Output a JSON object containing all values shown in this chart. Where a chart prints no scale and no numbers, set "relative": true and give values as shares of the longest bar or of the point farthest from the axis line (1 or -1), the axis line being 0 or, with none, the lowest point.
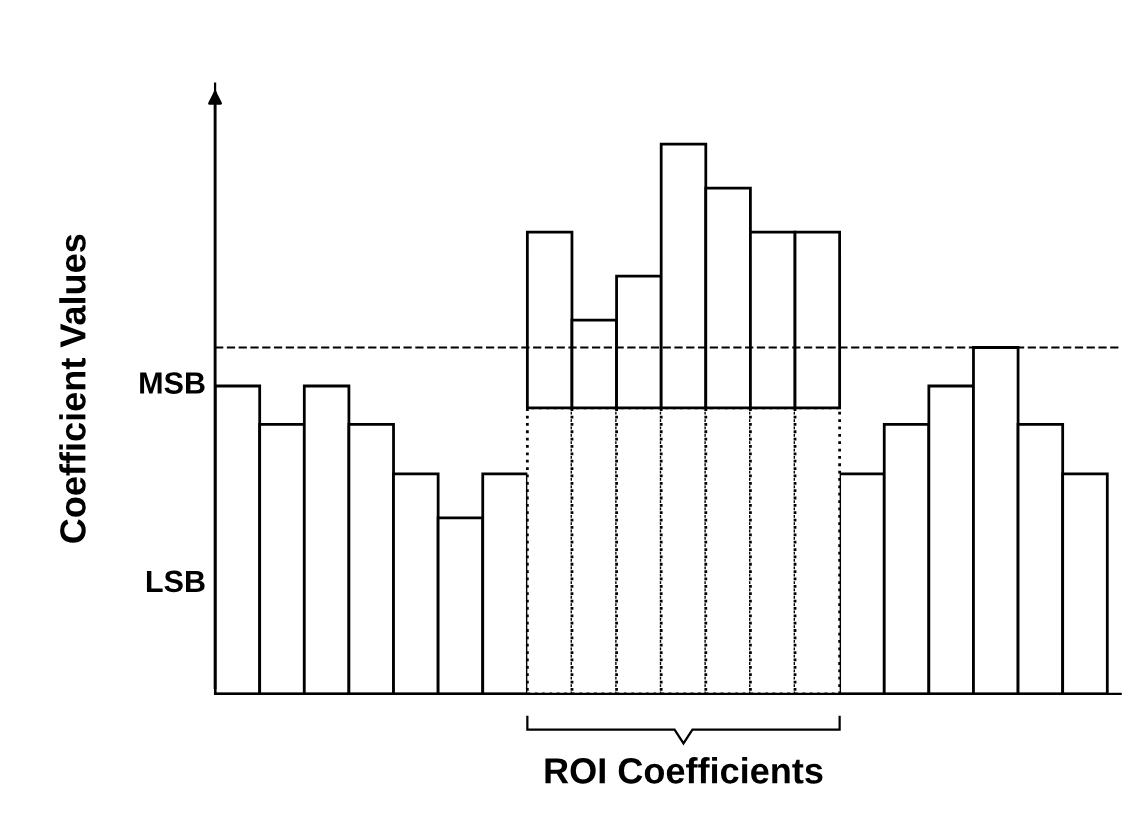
{
  "chart_data": {
    "type": "bar",
    "relative": true,
    "stacked": true,
    "ylabel": "Coefficient Values",
    "categories": [
      null,
      null,
      null,
      null,
      null,
      null,
      null,
      null,
      null,
      null,
      null,
      null,
      null,
      null,
      null,
      null,
      null,
      null,
      null,
      null
    ],
    "series": [
      {
        "color": "#ffffff",
        "line_style": "solid",
        "values": [
          0.56,
          0.49,
          0.56,
          0.49,
          0.4,
          0.32,
          0.4,
          null,
          null,
          null,
          null,
          null,
          null,
          null,
          0.4,
          0.49,
          0.56,
          0.63,
          0.49,
          0.4
        ]
      },
      {
        "color": "#ffffff",
        "line_style": "dotted",
        "values": [
          null,
          null,
          null,
          null,
          null,
          null,
          null,
          0.52,
          0.52,
          0.52,
          0.52,
          0.52,
          0.52,
          0.52,
          null,
          null,
          null,
          null,
          null,
          null
        ]
      },
      {
        "color": "#ffffff",
        "line_style": "solid",
        "values": [
          null,
          null,
          null,
          null,
          null,
          null,
          null,
          0.32,
          0.16,
          0.24,
          0.48,
          0.4,
          0.32,
          0.32,
          null,
          null,
          null,
          null,
          null,
          null
        ]
      }
    ],
    "ref_lines": [
      {
        "axis": "y",
        "value": 0.63,
        "line_style": "dashed",
        "color": "#000000"
      }
    ],
    "annotations": [
      "ROI Coefficients",
      "MSB",
      "LSB"
    ],
    "grid": false,
    "legend": false
  }
}
